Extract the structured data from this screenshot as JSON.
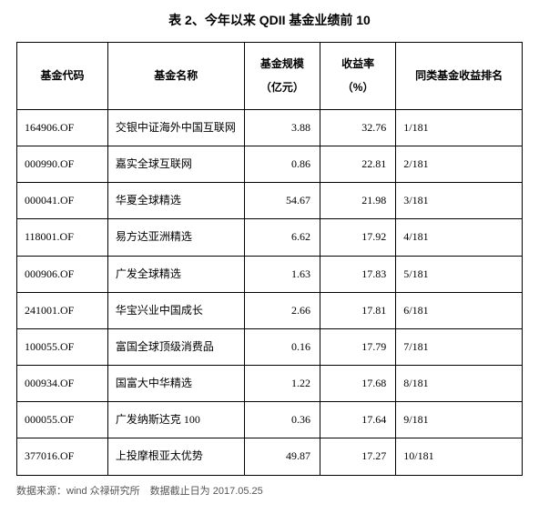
{
  "title": "表 2、今年以来 QDII 基金业绩前 10",
  "columns": {
    "code": "基金代码",
    "name": "基金名称",
    "scale_l1": "基金规模",
    "scale_l2": "（亿元）",
    "return_l1": "收益率",
    "return_l2": "（%）",
    "rank": "同类基金收益排名"
  },
  "rows": [
    {
      "code": "164906.OF",
      "name": "交银中证海外中国互联网",
      "scale": "3.88",
      "return": "32.76",
      "rank": "1/181"
    },
    {
      "code": "000990.OF",
      "name": "嘉实全球互联网",
      "scale": "0.86",
      "return": "22.81",
      "rank": "2/181"
    },
    {
      "code": "000041.OF",
      "name": "华夏全球精选",
      "scale": "54.67",
      "return": "21.98",
      "rank": "3/181"
    },
    {
      "code": "118001.OF",
      "name": "易方达亚洲精选",
      "scale": "6.62",
      "return": "17.92",
      "rank": "4/181"
    },
    {
      "code": "000906.OF",
      "name": "广发全球精选",
      "scale": "1.63",
      "return": "17.83",
      "rank": "5/181"
    },
    {
      "code": "241001.OF",
      "name": "华宝兴业中国成长",
      "scale": "2.66",
      "return": "17.81",
      "rank": "6/181"
    },
    {
      "code": "100055.OF",
      "name": "富国全球顶级消费品",
      "scale": "0.16",
      "return": "17.79",
      "rank": "7/181"
    },
    {
      "code": "000934.OF",
      "name": "国富大中华精选",
      "scale": "1.22",
      "return": "17.68",
      "rank": "8/181"
    },
    {
      "code": "000055.OF",
      "name": "广发纳斯达克 100",
      "scale": "0.36",
      "return": "17.64",
      "rank": "9/181"
    },
    {
      "code": "377016.OF",
      "name": "上投摩根亚太优势",
      "scale": "49.87",
      "return": "17.27",
      "rank": "10/181"
    }
  ],
  "footer": "数据来源：wind 众禄研究所 数据截止日为 2017.05.25",
  "styling": {
    "type": "table",
    "border_color": "#000000",
    "background_color": "#ffffff",
    "title_fontsize": 14,
    "cell_fontsize": 12,
    "footer_fontsize": 11,
    "footer_color": "#555555",
    "col_widths_pct": [
      18,
      27,
      15,
      15,
      25
    ],
    "col_align": [
      "left",
      "left",
      "right",
      "right",
      "left"
    ]
  }
}
